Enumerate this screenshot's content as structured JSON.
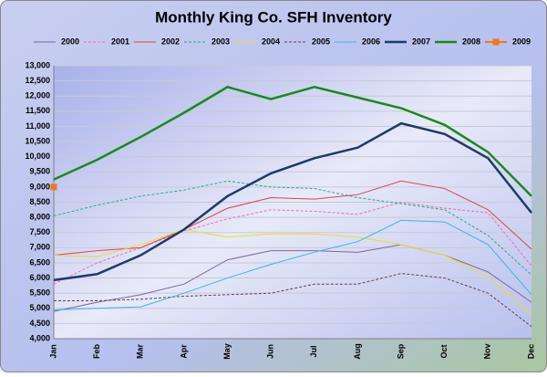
{
  "chart_data": {
    "type": "line",
    "title": "Monthly King Co. SFH Inventory",
    "categories": [
      "Jan",
      "Feb",
      "Mar",
      "Apr",
      "May",
      "Jun",
      "Jul",
      "Aug",
      "Sep",
      "Oct",
      "Nov",
      "Dec"
    ],
    "ylim": [
      4000,
      13000
    ],
    "yticks": [
      {
        "value": 4000,
        "label": "4,000"
      },
      {
        "value": 4500,
        "label": "4,500"
      },
      {
        "value": 5000,
        "label": "5,000"
      },
      {
        "value": 5500,
        "label": "5,500"
      },
      {
        "value": 6000,
        "label": "6,000"
      },
      {
        "value": 6500,
        "label": "6,500"
      },
      {
        "value": 7000,
        "label": "7,000"
      },
      {
        "value": 7500,
        "label": "7,500"
      },
      {
        "value": 8000,
        "label": "8,000"
      },
      {
        "value": 8500,
        "label": "8,500"
      },
      {
        "value": 9000,
        "label": "9,000"
      },
      {
        "value": 9500,
        "label": "9,500"
      },
      {
        "value": 10000,
        "label": "10,000"
      },
      {
        "value": 10500,
        "label": "10,500"
      },
      {
        "value": 11000,
        "label": "11,000"
      },
      {
        "value": 11500,
        "label": "11,500"
      },
      {
        "value": 12000,
        "label": "12,000"
      },
      {
        "value": 12500,
        "label": "12,500"
      },
      {
        "value": 13000,
        "label": "13,000"
      }
    ],
    "grid": true,
    "legend": "top",
    "series": [
      {
        "name": "2000",
        "color": "#8064a2",
        "width": 1,
        "dashed": false,
        "values": [
          4900,
          5200,
          5450,
          5800,
          6600,
          6900,
          6900,
          6850,
          7100,
          6750,
          6200,
          5200
        ]
      },
      {
        "name": "2001",
        "color": "#f06ab4",
        "width": 1,
        "dashed": true,
        "values": [
          5800,
          6500,
          7000,
          7550,
          7950,
          8250,
          8200,
          8100,
          8500,
          8300,
          8150,
          6400
        ]
      },
      {
        "name": "2002",
        "color": "#e0404e",
        "width": 1,
        "dashed": false,
        "values": [
          6750,
          6900,
          7000,
          7600,
          8300,
          8650,
          8600,
          8750,
          9200,
          8950,
          8250,
          6950
        ]
      },
      {
        "name": "2003",
        "color": "#2aa88a",
        "width": 1,
        "dashed": true,
        "values": [
          8050,
          8400,
          8700,
          8900,
          9200,
          9000,
          8950,
          8650,
          8450,
          8250,
          7400,
          6100
        ]
      },
      {
        "name": "2004",
        "color": "#e8e020",
        "width": 1,
        "dashed": false,
        "values": [
          6750,
          6700,
          7100,
          7600,
          7350,
          7450,
          7450,
          7350,
          7100,
          6750,
          6050,
          4800
        ]
      },
      {
        "name": "2005",
        "color": "#6a3a50",
        "width": 1,
        "dashed": true,
        "values": [
          5250,
          5250,
          5300,
          5400,
          5450,
          5500,
          5800,
          5800,
          6150,
          6000,
          5500,
          4400
        ]
      },
      {
        "name": "2006",
        "color": "#3cb4e8",
        "width": 1,
        "dashed": false,
        "values": [
          4950,
          5000,
          5050,
          5500,
          6000,
          6450,
          6850,
          7200,
          7900,
          7850,
          7100,
          5450
        ]
      },
      {
        "name": "2007",
        "color": "#1f3a68",
        "width": 2.5,
        "dashed": false,
        "values": [
          5930,
          6130,
          6750,
          7600,
          8700,
          9450,
          9950,
          10300,
          11100,
          10750,
          9950,
          8150
        ]
      },
      {
        "name": "2008",
        "color": "#1a8a1a",
        "width": 2.5,
        "dashed": false,
        "values": [
          9250,
          9900,
          10650,
          11450,
          12300,
          11900,
          12300,
          11950,
          11600,
          11050,
          10150,
          8700
        ]
      },
      {
        "name": "2009",
        "color": "#f07818",
        "width": 2,
        "dashed": false,
        "marker": "square",
        "values": [
          9000,
          null,
          null,
          null,
          null,
          null,
          null,
          null,
          null,
          null,
          null,
          null
        ]
      }
    ]
  }
}
